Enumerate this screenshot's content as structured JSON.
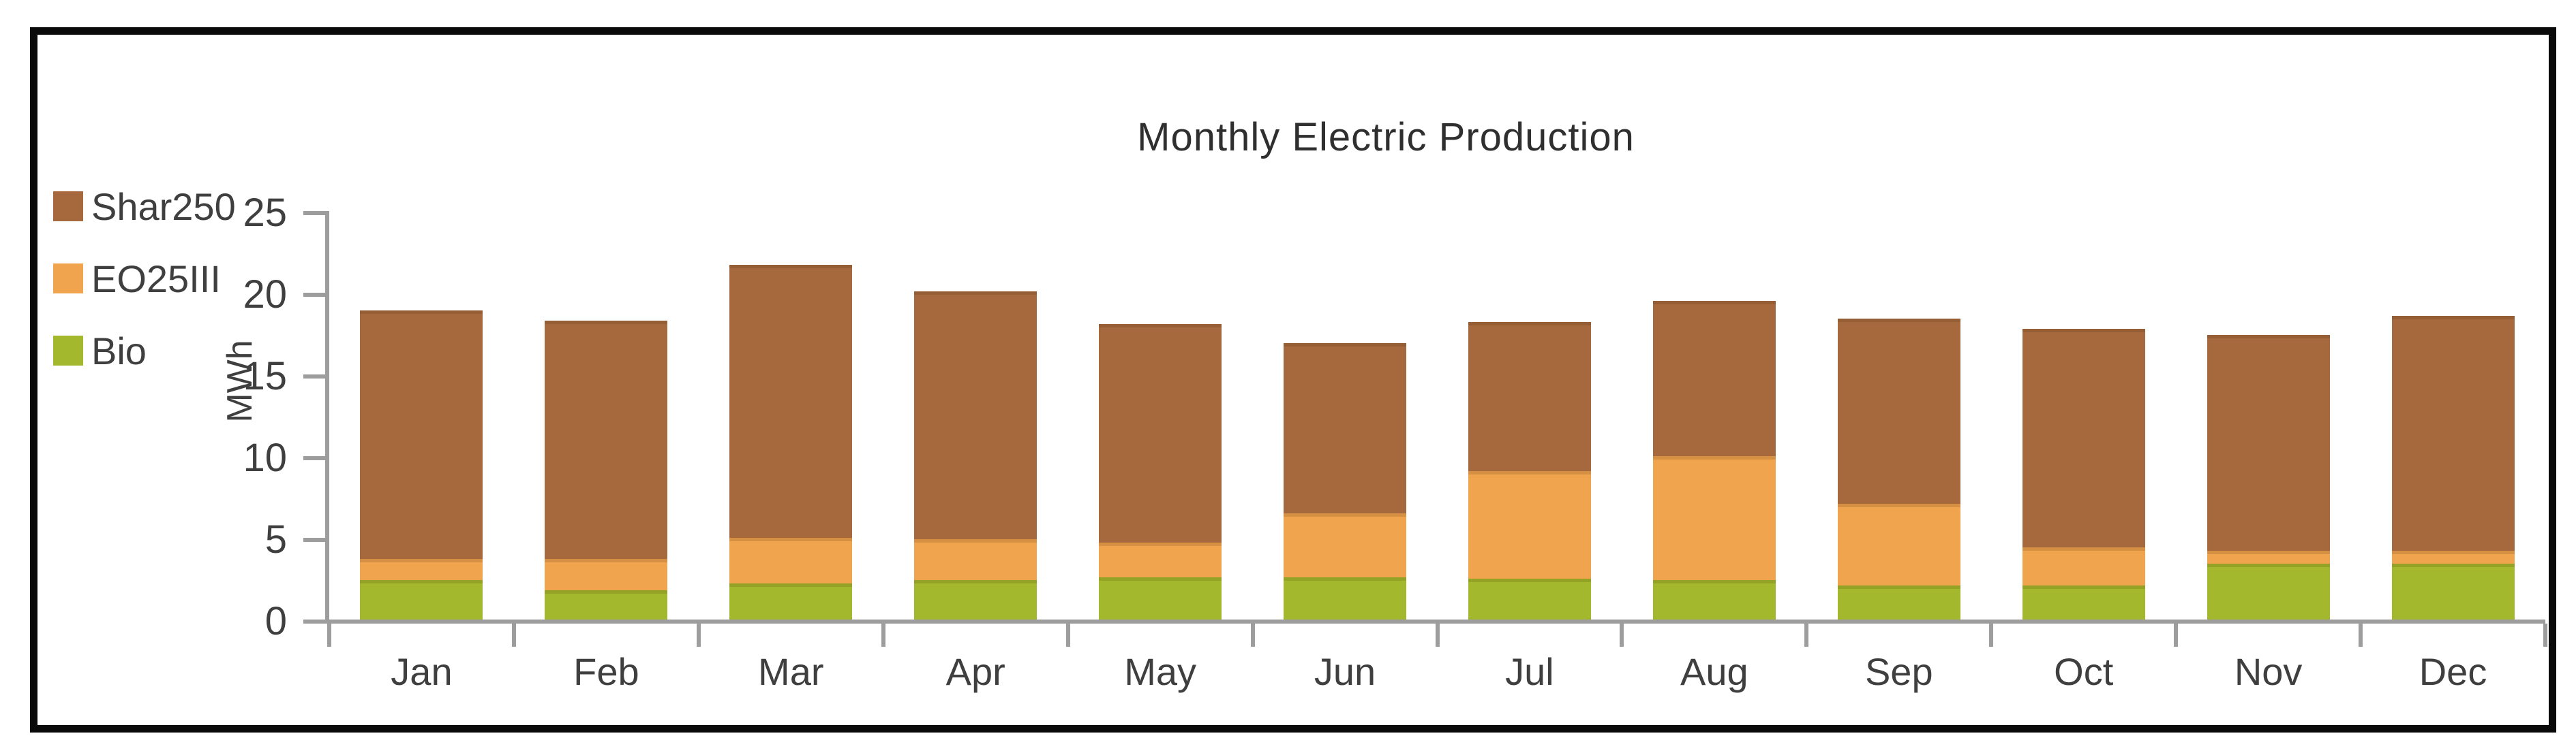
{
  "frame": {
    "border_color": "#0a0a0a",
    "background": "#ffffff"
  },
  "axis": {
    "line_color": "#9d9d9d",
    "text_color": "#3f3f3f"
  },
  "chart_data": {
    "type": "bar",
    "stacked": true,
    "title": "Monthly Electric Production",
    "xlabel": "",
    "ylabel": "MWh",
    "ylim": [
      0,
      25
    ],
    "y_ticks": [
      0,
      5,
      10,
      15,
      20,
      25
    ],
    "grid": false,
    "legend_position": "top-left",
    "categories": [
      "Jan",
      "Feb",
      "Mar",
      "Apr",
      "May",
      "Jun",
      "Jul",
      "Aug",
      "Sep",
      "Oct",
      "Nov",
      "Dec"
    ],
    "series": [
      {
        "name": "Shar250",
        "color": "#A5693D",
        "values": [
          15.2,
          14.6,
          16.7,
          15.2,
          13.4,
          10.4,
          9.1,
          9.5,
          11.3,
          13.4,
          13.2,
          14.4
        ]
      },
      {
        "name": "EO25III",
        "color": "#F0A44E",
        "values": [
          1.3,
          1.9,
          2.8,
          2.5,
          2.1,
          3.9,
          6.6,
          7.6,
          5.0,
          2.3,
          0.8,
          0.8
        ]
      },
      {
        "name": "Bio",
        "color": "#A3B82C",
        "values": [
          2.4,
          1.8,
          2.2,
          2.4,
          2.6,
          2.6,
          2.5,
          2.4,
          2.1,
          2.1,
          3.4,
          3.4
        ]
      }
    ],
    "stack_order_bottom_to_top": [
      "Bio",
      "EO25III",
      "Shar250"
    ]
  }
}
